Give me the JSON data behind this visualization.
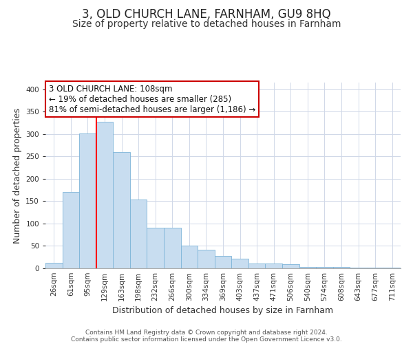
{
  "title": "3, OLD CHURCH LANE, FARNHAM, GU9 8HQ",
  "subtitle": "Size of property relative to detached houses in Farnham",
  "xlabel": "Distribution of detached houses by size in Farnham",
  "ylabel": "Number of detached properties",
  "bar_color": "#c8ddf0",
  "bar_edge_color": "#7db4d8",
  "background_color": "#ffffff",
  "grid_color": "#d0d8e8",
  "ylim": [
    0,
    415
  ],
  "yticks": [
    0,
    50,
    100,
    150,
    200,
    250,
    300,
    350,
    400
  ],
  "bin_labels": [
    "26sqm",
    "61sqm",
    "95sqm",
    "129sqm",
    "163sqm",
    "198sqm",
    "232sqm",
    "266sqm",
    "300sqm",
    "334sqm",
    "369sqm",
    "403sqm",
    "437sqm",
    "471sqm",
    "506sqm",
    "540sqm",
    "574sqm",
    "608sqm",
    "643sqm",
    "677sqm",
    "711sqm"
  ],
  "bar_values": [
    13,
    170,
    302,
    328,
    260,
    153,
    91,
    91,
    50,
    42,
    27,
    22,
    11,
    11,
    9,
    3,
    3,
    3,
    1,
    2,
    2
  ],
  "red_line_x": 2.5,
  "annotation_text": "3 OLD CHURCH LANE: 108sqm\n← 19% of detached houses are smaller (285)\n81% of semi-detached houses are larger (1,186) →",
  "annotation_box_color": "#ffffff",
  "annotation_box_edge_color": "#cc0000",
  "footer_line1": "Contains HM Land Registry data © Crown copyright and database right 2024.",
  "footer_line2": "Contains public sector information licensed under the Open Government Licence v3.0.",
  "title_fontsize": 12,
  "subtitle_fontsize": 10,
  "label_fontsize": 9,
  "tick_fontsize": 7.5,
  "annotation_fontsize": 8.5,
  "footer_fontsize": 6.5
}
